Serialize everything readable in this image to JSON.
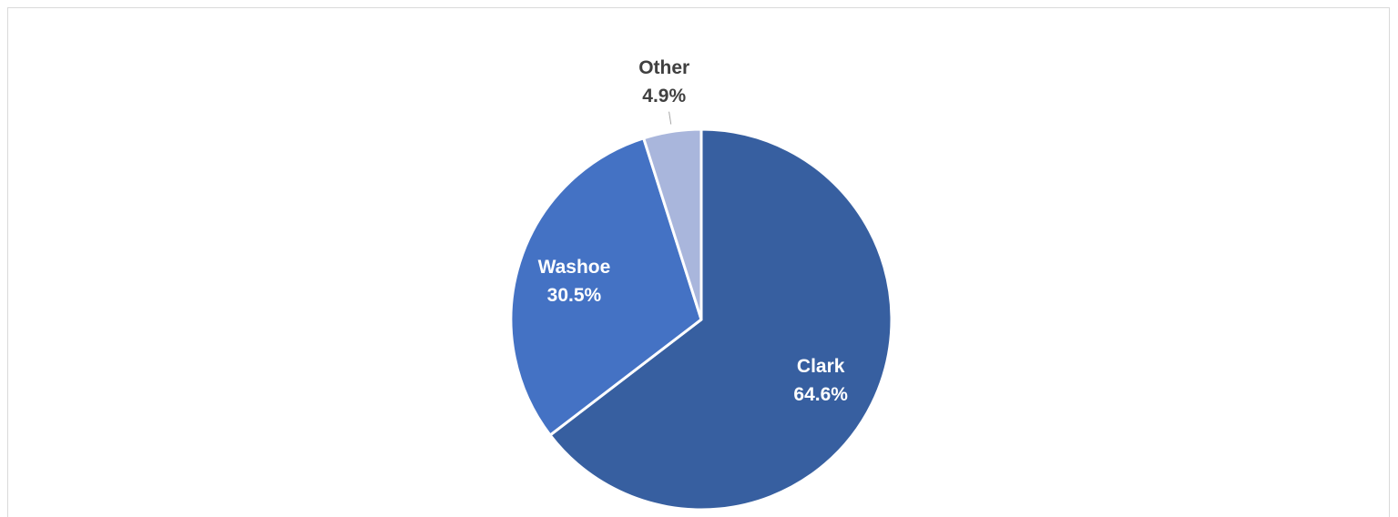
{
  "chart_data": {
    "type": "pie",
    "title": "",
    "start_angle_deg": 0,
    "direction": "clockwise",
    "slices": [
      {
        "label": "Clark",
        "value": 64.6,
        "display": "64.6%",
        "color": "#375FA0",
        "label_color": "#ffffff",
        "label_position": "inside"
      },
      {
        "label": "Washoe",
        "value": 30.5,
        "display": "30.5%",
        "color": "#4472C4",
        "label_color": "#ffffff",
        "label_position": "inside"
      },
      {
        "label": "Other",
        "value": 4.9,
        "display": "4.9%",
        "color": "#A9B6DC",
        "label_color": "#404040",
        "label_position": "outside"
      }
    ],
    "legend": "none"
  }
}
